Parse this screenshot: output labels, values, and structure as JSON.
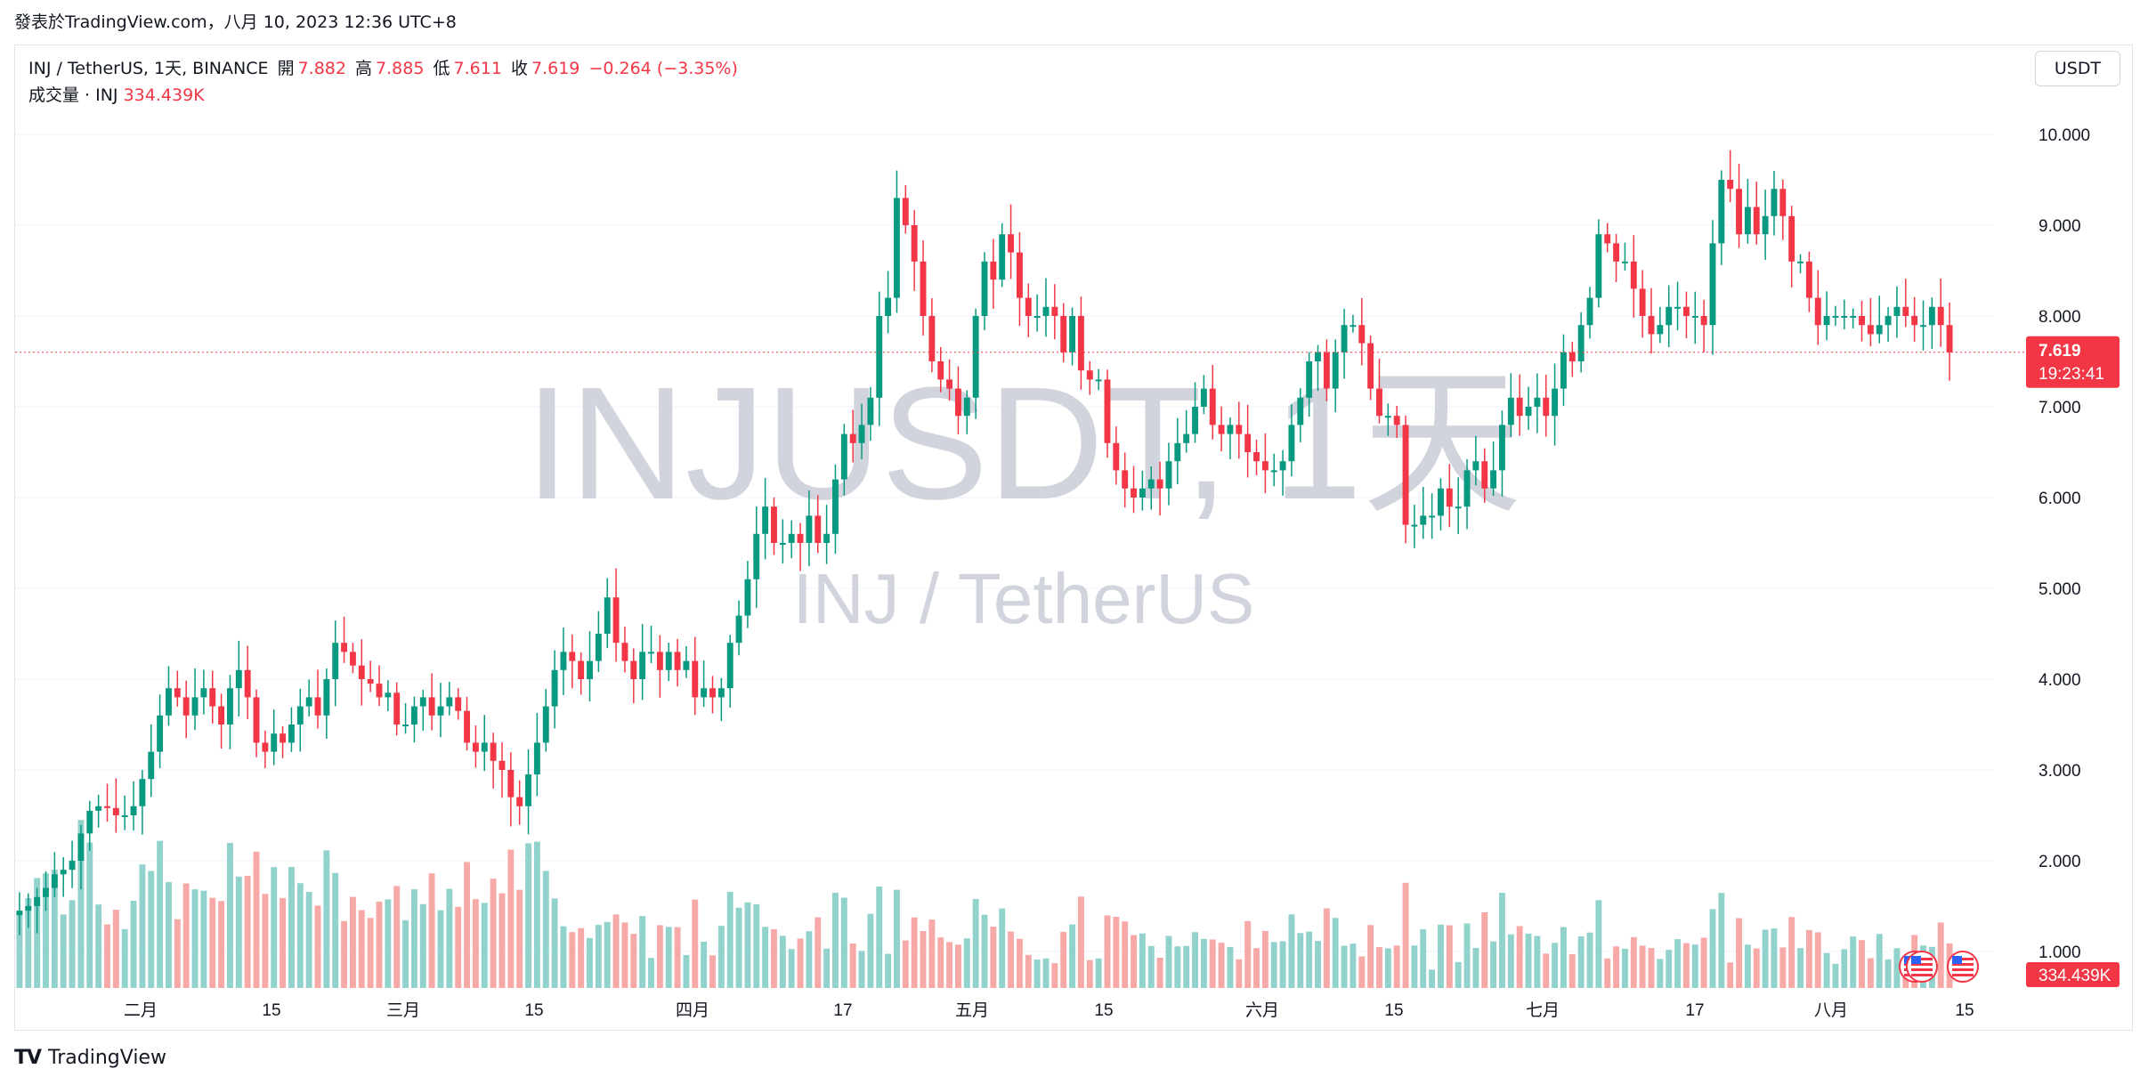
{
  "header": {
    "published_line": "發表於TradingView.com，八月 10, 2023 12:36 UTC+8"
  },
  "legend": {
    "symbol": "INJ / TetherUS, 1天, BINANCE",
    "open_label": "開",
    "open": "7.882",
    "high_label": "高",
    "high": "7.885",
    "low_label": "低",
    "low": "7.611",
    "close_label": "收",
    "close": "7.619",
    "change": "−0.264 (−3.35%)",
    "volume_label": "成交量 · INJ",
    "volume": "334.439K"
  },
  "currency_button": "USDT",
  "watermark": {
    "main": "INJUSDT, 1天",
    "sub": "INJ / TetherUS"
  },
  "price_axis": {
    "ticks": [
      "10.000",
      "9.000",
      "8.000",
      "7.000",
      "6.000",
      "5.000",
      "4.000",
      "3.000",
      "2.000",
      "1.000"
    ]
  },
  "last_price_tag": {
    "price": "7.619",
    "countdown": "19:23:41"
  },
  "volume_tag": "334.439K",
  "time_axis": {
    "ticks": [
      "二月",
      "15",
      "三月",
      "15",
      "四月",
      "17",
      "五月",
      "15",
      "六月",
      "15",
      "七月",
      "17",
      "八月",
      "15"
    ]
  },
  "brand": "TradingView",
  "colors": {
    "up": "#089981",
    "down": "#f23645",
    "up_volume": "#92d2cc",
    "down_volume": "#f7a9a7",
    "last_price": "#f23645",
    "watermark": "#d1d4dc",
    "grid": "#f0f3fa"
  },
  "chart_data": {
    "type": "candlestick",
    "x_start": "2023-01-19",
    "x_step": "1 day",
    "price_range": [
      1.0,
      10.0
    ],
    "series": [
      {
        "name": "INJ / TetherUS",
        "ohlc_close": [
          1.45,
          1.5,
          1.6,
          1.7,
          1.85,
          1.9,
          2.0,
          2.3,
          2.55,
          2.6,
          2.58,
          2.5,
          2.5,
          2.6,
          2.9,
          3.2,
          3.6,
          3.9,
          3.8,
          3.6,
          3.8,
          3.9,
          3.7,
          3.5,
          3.9,
          4.1,
          3.8,
          3.3,
          3.2,
          3.4,
          3.3,
          3.5,
          3.7,
          3.8,
          3.6,
          4.0,
          4.4,
          4.3,
          4.15,
          4.0,
          3.95,
          3.8,
          3.85,
          3.5,
          3.5,
          3.7,
          3.8,
          3.6,
          3.7,
          3.8,
          3.65,
          3.3,
          3.2,
          3.3,
          3.1,
          3.0,
          2.7,
          2.6,
          2.95,
          3.3,
          3.7,
          4.1,
          4.3,
          4.2,
          4.0,
          4.2,
          4.5,
          4.9,
          4.4,
          4.2,
          4.0,
          4.3,
          4.3,
          4.1,
          4.3,
          4.1,
          4.2,
          3.8,
          3.9,
          3.8,
          3.9,
          4.4,
          4.7,
          5.1,
          5.6,
          5.9,
          5.5,
          5.5,
          5.6,
          5.5,
          5.8,
          5.5,
          5.6,
          6.2,
          6.7,
          6.6,
          6.8,
          7.1,
          8.0,
          8.2,
          9.3,
          9.0,
          8.6,
          8.0,
          7.5,
          7.3,
          7.2,
          6.9,
          7.1,
          8.0,
          8.6,
          8.4,
          8.9,
          8.7,
          8.2,
          8.0,
          8.0,
          8.1,
          8.0,
          7.6,
          8.0,
          7.4,
          7.3,
          7.3,
          6.6,
          6.3,
          6.1,
          6.0,
          6.1,
          6.2,
          6.1,
          6.4,
          6.6,
          6.7,
          7.0,
          7.2,
          6.8,
          6.7,
          6.8,
          6.7,
          6.5,
          6.4,
          6.3,
          6.3,
          6.4,
          6.8,
          7.1,
          7.5,
          7.6,
          7.2,
          7.6,
          7.9,
          7.9,
          7.7,
          7.2,
          6.9,
          6.9,
          6.8,
          5.7,
          5.7,
          5.8,
          5.8,
          6.1,
          5.9,
          5.9,
          6.3,
          6.4,
          6.1,
          6.3,
          6.8,
          7.1,
          6.9,
          7.0,
          7.1,
          6.9,
          7.2,
          7.6,
          7.5,
          7.9,
          8.2,
          8.9,
          8.8,
          8.6,
          8.6,
          8.3,
          8.0,
          7.8,
          7.9,
          8.1,
          8.1,
          8.0,
          8.0,
          7.9,
          8.8,
          9.5,
          9.4,
          8.9,
          9.2,
          8.9,
          9.1,
          9.4,
          9.1,
          8.6,
          8.6,
          8.2,
          7.9,
          8.0,
          8.0,
          8.0,
          8.0,
          7.9,
          7.8,
          7.9,
          8.0,
          8.1,
          8.0,
          7.9,
          7.9,
          8.1,
          7.9,
          7.6
        ]
      }
    ],
    "notes": "Daily candles Jan–Aug 2023; last candle O 7.882 H 7.885 L 7.611 C 7.619; volume shown in lower pane"
  }
}
